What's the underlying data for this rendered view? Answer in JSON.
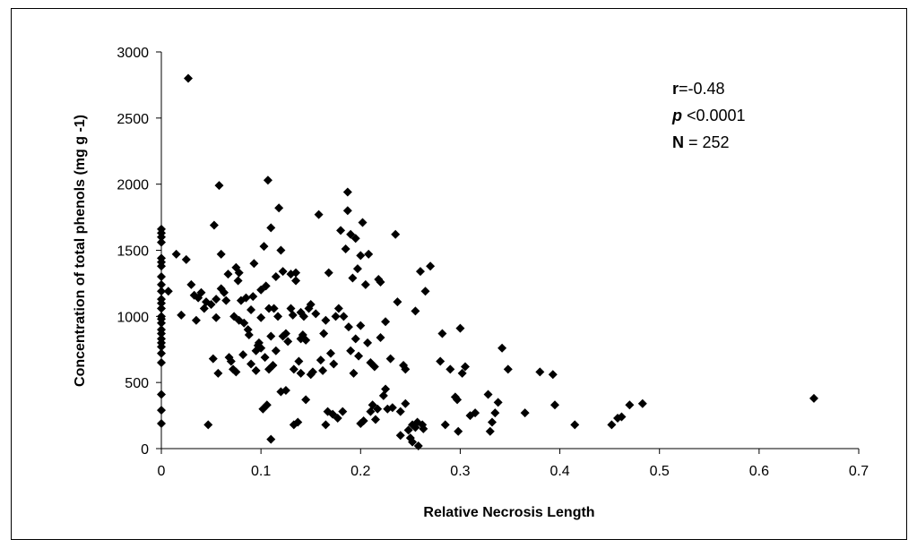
{
  "chart_data": {
    "type": "scatter",
    "xlabel": "Relative Necrosis Length",
    "ylabel": "Concentration of total phenols (mg  g -1)",
    "xlim": [
      0,
      0.7
    ],
    "ylim": [
      0,
      3000
    ],
    "xticks": [
      "0",
      "0.1",
      "0.2",
      "0.3",
      "0.4",
      "0.5",
      "0.6",
      "0.7"
    ],
    "yticks": [
      "0",
      "500",
      "1000",
      "1500",
      "2000",
      "2500",
      "3000"
    ],
    "grid": false,
    "marker": "diamond",
    "marker_color": "#000000",
    "annotations": {
      "r_label": "r",
      "r_value": "=-0.48",
      "p_label": "p",
      "p_value": " <0.0001",
      "n_label": "N",
      "n_value": " = 252"
    },
    "series": [
      {
        "points": [
          [
            0,
            1660
          ],
          [
            0,
            1630
          ],
          [
            0,
            1600
          ],
          [
            0,
            1560
          ],
          [
            0,
            1440
          ],
          [
            0,
            1410
          ],
          [
            0,
            1380
          ],
          [
            0,
            1300
          ],
          [
            0,
            1240
          ],
          [
            0,
            1190
          ],
          [
            0,
            1130
          ],
          [
            0,
            1100
          ],
          [
            0,
            1060
          ],
          [
            0,
            1000
          ],
          [
            0,
            980
          ],
          [
            0,
            950
          ],
          [
            0,
            900
          ],
          [
            0,
            870
          ],
          [
            0,
            830
          ],
          [
            0,
            800
          ],
          [
            0,
            770
          ],
          [
            0,
            720
          ],
          [
            0,
            650
          ],
          [
            0,
            410
          ],
          [
            0,
            290
          ],
          [
            0,
            190
          ],
          [
            0.007,
            1190
          ],
          [
            0.015,
            1470
          ],
          [
            0.02,
            1010
          ],
          [
            0.025,
            1430
          ],
          [
            0.027,
            2800
          ],
          [
            0.03,
            1240
          ],
          [
            0.033,
            1160
          ],
          [
            0.035,
            970
          ],
          [
            0.037,
            1140
          ],
          [
            0.04,
            1180
          ],
          [
            0.043,
            1060
          ],
          [
            0.045,
            1110
          ],
          [
            0.047,
            180
          ],
          [
            0.05,
            1090
          ],
          [
            0.052,
            680
          ],
          [
            0.053,
            1690
          ],
          [
            0.055,
            1130
          ],
          [
            0.055,
            990
          ],
          [
            0.057,
            570
          ],
          [
            0.058,
            1990
          ],
          [
            0.06,
            1210
          ],
          [
            0.06,
            1470
          ],
          [
            0.063,
            1180
          ],
          [
            0.065,
            1120
          ],
          [
            0.067,
            1320
          ],
          [
            0.068,
            690
          ],
          [
            0.07,
            660
          ],
          [
            0.072,
            600
          ],
          [
            0.073,
            1000
          ],
          [
            0.075,
            580
          ],
          [
            0.075,
            1370
          ],
          [
            0.077,
            1270
          ],
          [
            0.078,
            1330
          ],
          [
            0.078,
            970
          ],
          [
            0.08,
            1120
          ],
          [
            0.082,
            710
          ],
          [
            0.083,
            950
          ],
          [
            0.085,
            1140
          ],
          [
            0.087,
            900
          ],
          [
            0.088,
            860
          ],
          [
            0.09,
            1050
          ],
          [
            0.09,
            640
          ],
          [
            0.092,
            1150
          ],
          [
            0.093,
            1400
          ],
          [
            0.095,
            740
          ],
          [
            0.095,
            590
          ],
          [
            0.097,
            780
          ],
          [
            0.098,
            800
          ],
          [
            0.1,
            990
          ],
          [
            0.1,
            1200
          ],
          [
            0.1,
            760
          ],
          [
            0.102,
            300
          ],
          [
            0.103,
            1530
          ],
          [
            0.104,
            690
          ],
          [
            0.105,
            1230
          ],
          [
            0.106,
            330
          ],
          [
            0.107,
            2030
          ],
          [
            0.108,
            600
          ],
          [
            0.108,
            1060
          ],
          [
            0.11,
            1670
          ],
          [
            0.11,
            850
          ],
          [
            0.11,
            70
          ],
          [
            0.112,
            630
          ],
          [
            0.113,
            1060
          ],
          [
            0.115,
            1300
          ],
          [
            0.115,
            740
          ],
          [
            0.117,
            1000
          ],
          [
            0.118,
            1820
          ],
          [
            0.12,
            430
          ],
          [
            0.12,
            1500
          ],
          [
            0.122,
            1340
          ],
          [
            0.122,
            850
          ],
          [
            0.125,
            440
          ],
          [
            0.125,
            870
          ],
          [
            0.127,
            810
          ],
          [
            0.13,
            1320
          ],
          [
            0.13,
            1060
          ],
          [
            0.132,
            1010
          ],
          [
            0.133,
            180
          ],
          [
            0.133,
            600
          ],
          [
            0.135,
            1270
          ],
          [
            0.135,
            1330
          ],
          [
            0.137,
            200
          ],
          [
            0.138,
            660
          ],
          [
            0.14,
            1030
          ],
          [
            0.14,
            830
          ],
          [
            0.14,
            570
          ],
          [
            0.142,
            860
          ],
          [
            0.143,
            1000
          ],
          [
            0.145,
            370
          ],
          [
            0.145,
            820
          ],
          [
            0.148,
            1060
          ],
          [
            0.15,
            1090
          ],
          [
            0.15,
            560
          ],
          [
            0.152,
            580
          ],
          [
            0.155,
            1020
          ],
          [
            0.158,
            1770
          ],
          [
            0.16,
            670
          ],
          [
            0.162,
            590
          ],
          [
            0.163,
            870
          ],
          [
            0.165,
            970
          ],
          [
            0.165,
            180
          ],
          [
            0.167,
            280
          ],
          [
            0.168,
            1330
          ],
          [
            0.17,
            720
          ],
          [
            0.172,
            260
          ],
          [
            0.173,
            640
          ],
          [
            0.175,
            1000
          ],
          [
            0.177,
            230
          ],
          [
            0.178,
            1060
          ],
          [
            0.18,
            1650
          ],
          [
            0.182,
            280
          ],
          [
            0.183,
            1000
          ],
          [
            0.185,
            1510
          ],
          [
            0.187,
            1800
          ],
          [
            0.187,
            1940
          ],
          [
            0.188,
            920
          ],
          [
            0.19,
            1620
          ],
          [
            0.19,
            740
          ],
          [
            0.192,
            1290
          ],
          [
            0.193,
            570
          ],
          [
            0.195,
            1590
          ],
          [
            0.195,
            830
          ],
          [
            0.197,
            1360
          ],
          [
            0.198,
            700
          ],
          [
            0.2,
            190
          ],
          [
            0.2,
            1460
          ],
          [
            0.2,
            930
          ],
          [
            0.202,
            1710
          ],
          [
            0.203,
            210
          ],
          [
            0.205,
            1240
          ],
          [
            0.207,
            800
          ],
          [
            0.208,
            1470
          ],
          [
            0.21,
            650
          ],
          [
            0.21,
            280
          ],
          [
            0.212,
            330
          ],
          [
            0.214,
            620
          ],
          [
            0.215,
            220
          ],
          [
            0.217,
            300
          ],
          [
            0.218,
            1280
          ],
          [
            0.22,
            1260
          ],
          [
            0.22,
            840
          ],
          [
            0.223,
            400
          ],
          [
            0.225,
            450
          ],
          [
            0.225,
            960
          ],
          [
            0.227,
            300
          ],
          [
            0.23,
            680
          ],
          [
            0.232,
            310
          ],
          [
            0.235,
            1620
          ],
          [
            0.237,
            1110
          ],
          [
            0.24,
            280
          ],
          [
            0.24,
            100
          ],
          [
            0.243,
            630
          ],
          [
            0.245,
            340
          ],
          [
            0.245,
            600
          ],
          [
            0.248,
            140
          ],
          [
            0.25,
            80
          ],
          [
            0.252,
            50
          ],
          [
            0.252,
            180
          ],
          [
            0.255,
            1040
          ],
          [
            0.255,
            160
          ],
          [
            0.257,
            200
          ],
          [
            0.258,
            20
          ],
          [
            0.26,
            1340
          ],
          [
            0.262,
            180
          ],
          [
            0.263,
            150
          ],
          [
            0.265,
            1190
          ],
          [
            0.27,
            1380
          ],
          [
            0.28,
            660
          ],
          [
            0.282,
            870
          ],
          [
            0.285,
            180
          ],
          [
            0.29,
            600
          ],
          [
            0.295,
            390
          ],
          [
            0.297,
            370
          ],
          [
            0.298,
            130
          ],
          [
            0.3,
            910
          ],
          [
            0.302,
            570
          ],
          [
            0.305,
            620
          ],
          [
            0.31,
            250
          ],
          [
            0.315,
            270
          ],
          [
            0.328,
            410
          ],
          [
            0.33,
            130
          ],
          [
            0.332,
            200
          ],
          [
            0.335,
            270
          ],
          [
            0.338,
            350
          ],
          [
            0.342,
            760
          ],
          [
            0.348,
            600
          ],
          [
            0.365,
            270
          ],
          [
            0.38,
            580
          ],
          [
            0.393,
            560
          ],
          [
            0.395,
            330
          ],
          [
            0.415,
            180
          ],
          [
            0.452,
            180
          ],
          [
            0.458,
            230
          ],
          [
            0.462,
            240
          ],
          [
            0.47,
            330
          ],
          [
            0.483,
            340
          ],
          [
            0.655,
            380
          ]
        ]
      }
    ]
  }
}
